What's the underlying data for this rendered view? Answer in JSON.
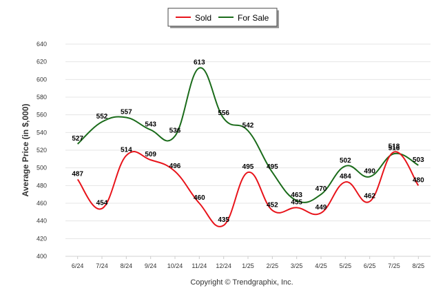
{
  "chart_data": {
    "type": "line",
    "title": "",
    "xlabel": "",
    "ylabel": "Average Price (in $,000)",
    "ylim": [
      400,
      640
    ],
    "yticks": [
      400,
      420,
      440,
      460,
      480,
      500,
      520,
      540,
      560,
      580,
      600,
      620,
      640
    ],
    "grid": true,
    "legend_position": "top-center",
    "categories": [
      "6/24",
      "7/24",
      "8/24",
      "9/24",
      "10/24",
      "11/24",
      "12/24",
      "1/25",
      "2/25",
      "3/25",
      "4/25",
      "5/25",
      "6/25",
      "7/25",
      "8/25"
    ],
    "series": [
      {
        "name": "Sold",
        "color": "#e8131a",
        "values": [
          487,
          454,
          514,
          509,
          496,
          460,
          435,
          495,
          452,
          455,
          449,
          484,
          462,
          518,
          480
        ],
        "labels": [
          "487",
          "454",
          "514",
          "509",
          "496",
          "460",
          "435",
          "495",
          "452",
          "455",
          "449",
          "484",
          "462",
          "518",
          "480"
        ]
      },
      {
        "name": "For Sale",
        "color": "#1a6b1a",
        "values": [
          527,
          552,
          557,
          543,
          536,
          613,
          556,
          542,
          495,
          463,
          470,
          502,
          490,
          516,
          503
        ],
        "labels": [
          "527",
          "552",
          "557",
          "543",
          "536",
          "613",
          "556",
          "542",
          "495",
          "463",
          "470",
          "502",
          "490",
          "516",
          "503"
        ]
      }
    ],
    "footer": "Copyright © Trendgraphix, Inc."
  }
}
